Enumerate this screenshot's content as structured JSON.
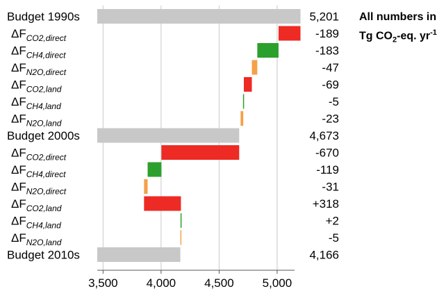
{
  "chart_data": {
    "type": "bar",
    "subtype": "waterfall",
    "orientation": "horizontal",
    "note": {
      "line1": "All numbers in",
      "line2_prefix": "Tg CO",
      "line2_sub": "2",
      "line2_mid": "-eq. yr",
      "line2_sup": "-1"
    },
    "xlim": [
      3450,
      5150
    ],
    "xticks": [
      3500,
      4000,
      4500,
      5000
    ],
    "xtick_labels": [
      "3,500",
      "4,000",
      "4,500",
      "5,000"
    ],
    "grid": "vertical",
    "colors": {
      "budget": "#c8c8c8",
      "co2": "#ee2a24",
      "ch4": "#2ca02c",
      "n2o": "#f5a04a",
      "grid": "#c8c8c8",
      "axis": "#555555"
    },
    "rows": [
      {
        "kind": "budget",
        "label": "Budget 1990s",
        "start": 0,
        "end": 5201,
        "value_label": "5,201",
        "color": "budget"
      },
      {
        "kind": "delta",
        "sym": "ΔF",
        "sub": "CO2,direct",
        "start": 5201,
        "end": 5012,
        "value_label": "-189",
        "color": "co2"
      },
      {
        "kind": "delta",
        "sym": "ΔF",
        "sub": "CH4,direct",
        "start": 5012,
        "end": 4829,
        "value_label": "-183",
        "color": "ch4"
      },
      {
        "kind": "delta",
        "sym": "ΔF",
        "sub": "N2O,direct",
        "start": 4829,
        "end": 4782,
        "value_label": "-47",
        "color": "n2o"
      },
      {
        "kind": "delta",
        "sym": "ΔF",
        "sub": "CO2,land",
        "start": 4782,
        "end": 4713,
        "value_label": "-69",
        "color": "co2"
      },
      {
        "kind": "delta",
        "sym": "ΔF",
        "sub": "CH4,land",
        "start": 4713,
        "end": 4708,
        "value_label": "-5",
        "color": "ch4"
      },
      {
        "kind": "delta",
        "sym": "ΔF",
        "sub": "N2O,land",
        "start": 4708,
        "end": 4685,
        "value_label": "-23",
        "color": "n2o"
      },
      {
        "kind": "budget",
        "label": "Budget 2000s",
        "start": 0,
        "end": 4673,
        "value_label": "4,673",
        "color": "budget"
      },
      {
        "kind": "delta",
        "sym": "ΔF",
        "sub": "CO2,direct",
        "start": 4673,
        "end": 4003,
        "value_label": "-670",
        "color": "co2"
      },
      {
        "kind": "delta",
        "sym": "ΔF",
        "sub": "CH4,direct",
        "start": 4003,
        "end": 3884,
        "value_label": "-119",
        "color": "ch4"
      },
      {
        "kind": "delta",
        "sym": "ΔF",
        "sub": "N2O,direct",
        "start": 3884,
        "end": 3853,
        "value_label": "-31",
        "color": "n2o"
      },
      {
        "kind": "delta",
        "sym": "ΔF",
        "sub": "CO2,land",
        "start": 3853,
        "end": 4171,
        "value_label": "+318",
        "color": "co2"
      },
      {
        "kind": "delta",
        "sym": "ΔF",
        "sub": "CH4,land",
        "start": 4171,
        "end": 4173,
        "value_label": "+2",
        "color": "ch4"
      },
      {
        "kind": "delta",
        "sym": "ΔF",
        "sub": "N2O,land",
        "start": 4173,
        "end": 4168,
        "value_label": "-5",
        "color": "n2o"
      },
      {
        "kind": "budget",
        "label": "Budget 2010s",
        "start": 0,
        "end": 4166,
        "value_label": "4,166",
        "color": "budget"
      }
    ]
  }
}
